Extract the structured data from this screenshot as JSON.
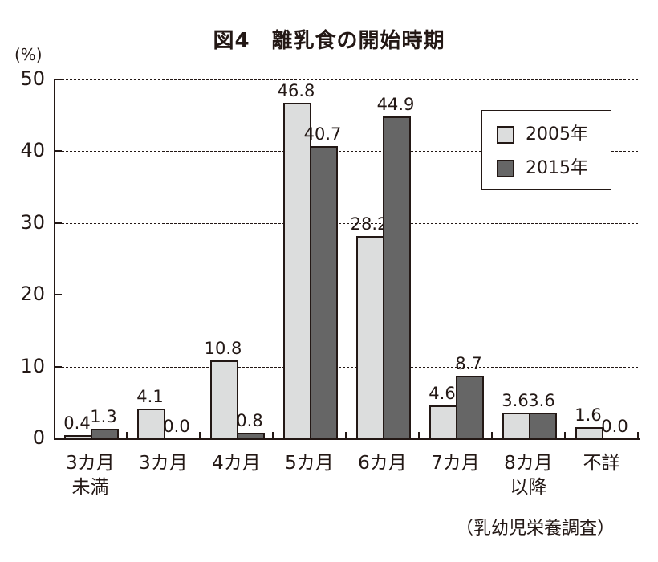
{
  "header": {
    "title": "図4　離乳食の開始時期"
  },
  "footer": {
    "source": "（乳幼児栄養調査）"
  },
  "axis": {
    "unit_label": "(%)"
  },
  "chart_data": {
    "type": "bar",
    "title": "図4　離乳食の開始時期",
    "xlabel": "",
    "ylabel": "(%)",
    "ylim": [
      0,
      50
    ],
    "yticks": [
      0,
      10,
      20,
      30,
      40,
      50
    ],
    "grid": true,
    "legend_position": "upper right",
    "categories": [
      "3カ月未満",
      "3カ月",
      "4カ月",
      "5カ月",
      "6カ月",
      "7カ月",
      "8カ月以降",
      "不詳"
    ],
    "category_lines": [
      [
        "3カ月",
        "未満"
      ],
      [
        "3カ月"
      ],
      [
        "4カ月"
      ],
      [
        "5カ月"
      ],
      [
        "6カ月"
      ],
      [
        "7カ月"
      ],
      [
        "8カ月",
        "以降"
      ],
      [
        "不詳"
      ]
    ],
    "series": [
      {
        "name": "2005年",
        "color": "#dcdddd",
        "values": [
          0.4,
          4.1,
          10.8,
          46.8,
          28.2,
          4.6,
          3.6,
          1.6
        ],
        "labels": [
          "0.4",
          "4.1",
          "10.8",
          "46.8",
          "28.2",
          "4.6",
          "3.6",
          "1.6"
        ]
      },
      {
        "name": "2015年",
        "color": "#666666",
        "values": [
          1.3,
          0.0,
          0.8,
          40.7,
          44.9,
          8.7,
          3.6,
          0.0
        ],
        "labels": [
          "1.3",
          "0.0",
          "0.8",
          "40.7",
          "44.9",
          "8.7",
          "3.6",
          "0.0"
        ]
      }
    ],
    "source": "（乳幼児栄養調査）"
  }
}
